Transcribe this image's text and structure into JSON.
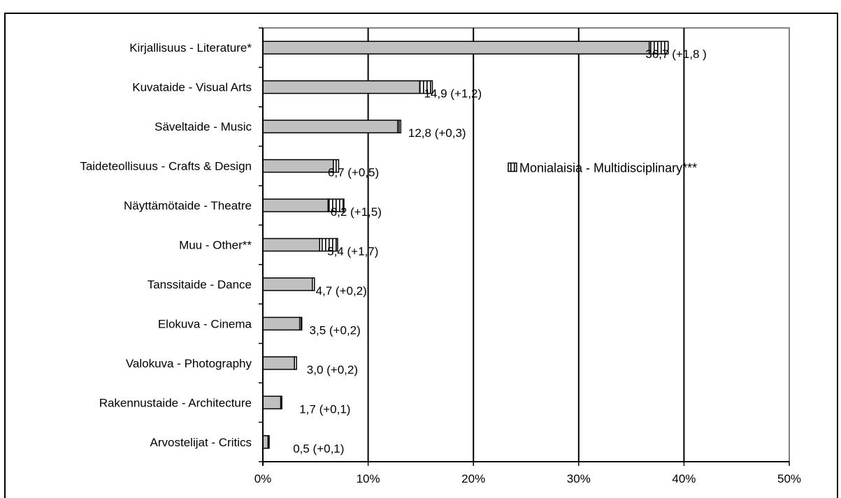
{
  "chart_data": {
    "type": "bar",
    "orientation": "horizontal",
    "stacked": true,
    "categories": [
      "Kirjallisuus - Literature*",
      "Kuvataide - Visual Arts",
      "Säveltaide - Music",
      "Taideteollisuus - Crafts & Design",
      "Näyttämötaide - Theatre",
      "Muu - Other**",
      "Tanssitaide - Dance",
      "Elokuva - Cinema",
      "Valokuva - Photography",
      "Rakennustaide - Architecture",
      "Arvostelijat - Critics"
    ],
    "series": [
      {
        "values": [
          36.7,
          14.9,
          12.8,
          6.7,
          6.2,
          5.4,
          4.7,
          3.5,
          3.0,
          1.7,
          0.5
        ],
        "color": "#c0c0c0",
        "pattern": "solid"
      },
      {
        "name": "Monialaisia - Multidisciplinary***",
        "values": [
          1.8,
          1.2,
          0.3,
          0.5,
          1.5,
          1.7,
          0.2,
          0.2,
          0.2,
          0.1,
          0.1
        ],
        "color": "#ffffff",
        "pattern": "vertical-stripes"
      }
    ],
    "data_labels": [
      "36,7 (+1,8 )",
      "14,9 (+1,2)",
      "12,8 (+0,3)",
      "6,7 (+0,5)",
      "6,2  (+1,5)",
      "5,4 (+1,7)",
      "4,7  (+0,2)",
      "3,5 (+0,2)",
      "3,0 (+0,2)",
      "1,7 (+0,1)",
      "0,5 (+0,1)"
    ],
    "x_ticks": [
      "0%",
      "10%",
      "20%",
      "30%",
      "40%",
      "50%"
    ],
    "xlim": [
      0,
      50
    ],
    "grid": "vertical",
    "legend_placement": "center-right"
  }
}
